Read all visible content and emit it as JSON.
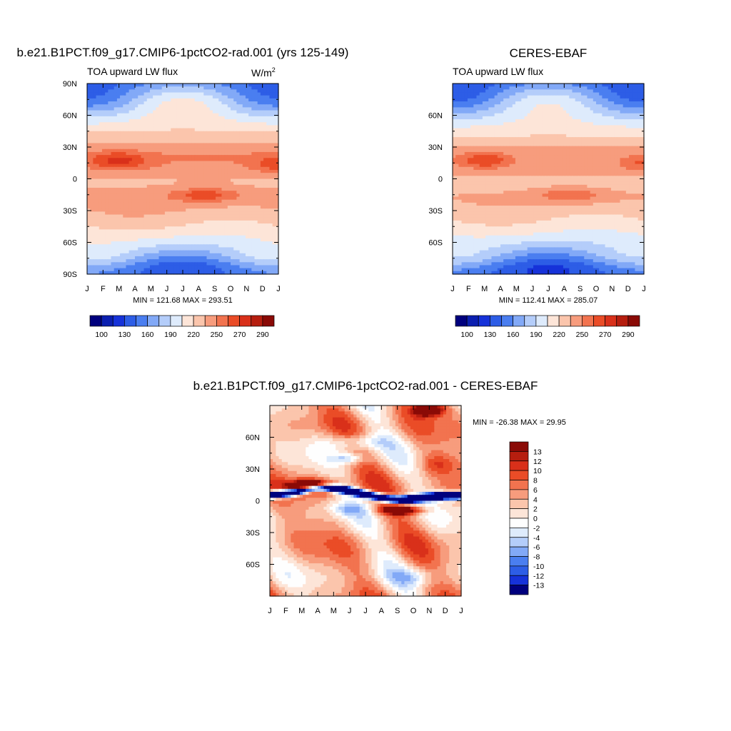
{
  "chart_data": [
    {
      "type": "heatmap",
      "title": "b.e21.B1PCT.f09_g17.CMIP6-1pctCO2-rad.001 (yrs 125-149)",
      "left_label": "TOA upward LW flux",
      "units_label": "W/m",
      "units_exponent": "2",
      "x_ticks": [
        "J",
        "F",
        "M",
        "A",
        "M",
        "J",
        "J",
        "A",
        "S",
        "O",
        "N",
        "D",
        "J"
      ],
      "y_ticks": [
        "90N",
        "60N",
        "30N",
        "0",
        "30S",
        "60S",
        "90S"
      ],
      "stats": "MIN = 121.68 MAX = 293.51",
      "min": 121.68,
      "max": 293.51,
      "colorbar_labels": [
        "100",
        "130",
        "160",
        "190",
        "220",
        "250",
        "270",
        "290"
      ],
      "colorbar_colors": [
        "#00007e",
        "#0b1fb0",
        "#1632d9",
        "#2d5de6",
        "#4a7ef0",
        "#82a9f7",
        "#b4cdfa",
        "#deebfc",
        "#fde5d8",
        "#fbc5ac",
        "#f79c7d",
        "#f2734f",
        "#ea4c27",
        "#d9301a",
        "#b61e0f",
        "#8a0a06"
      ],
      "colorbar_levels": [
        100,
        115,
        130,
        145,
        160,
        175,
        190,
        205,
        220,
        235,
        250,
        260,
        270,
        280,
        290
      ]
    },
    {
      "type": "heatmap",
      "title": "CERES-EBAF",
      "left_label": "TOA upward LW flux",
      "x_ticks": [
        "J",
        "F",
        "M",
        "A",
        "M",
        "J",
        "J",
        "A",
        "S",
        "O",
        "N",
        "D",
        "J"
      ],
      "y_ticks": [
        "60N",
        "30N",
        "0",
        "30S",
        "60S"
      ],
      "stats": "MIN = 112.41 MAX = 285.07",
      "min": 112.41,
      "max": 285.07,
      "colorbar_labels": [
        "100",
        "130",
        "160",
        "190",
        "220",
        "250",
        "270",
        "290"
      ],
      "colorbar_colors": [
        "#00007e",
        "#0b1fb0",
        "#1632d9",
        "#2d5de6",
        "#4a7ef0",
        "#82a9f7",
        "#b4cdfa",
        "#deebfc",
        "#fde5d8",
        "#fbc5ac",
        "#f79c7d",
        "#f2734f",
        "#ea4c27",
        "#d9301a",
        "#b61e0f",
        "#8a0a06"
      ],
      "colorbar_levels": [
        100,
        115,
        130,
        145,
        160,
        175,
        190,
        205,
        220,
        235,
        250,
        260,
        270,
        280,
        290
      ]
    },
    {
      "type": "heatmap",
      "title": "b.e21.B1PCT.f09_g17.CMIP6-1pctCO2-rad.001 - CERES-EBAF",
      "x_ticks": [
        "J",
        "F",
        "M",
        "A",
        "M",
        "J",
        "J",
        "A",
        "S",
        "O",
        "N",
        "D",
        "J"
      ],
      "y_ticks": [
        "60N",
        "30N",
        "0",
        "30S",
        "60S"
      ],
      "stats": "MIN = -26.38 MAX =  29.95",
      "min": -26.38,
      "max": 29.95,
      "colorbar_labels": [
        "13",
        "12",
        "10",
        "8",
        "6",
        "4",
        "2",
        "0",
        "-2",
        "-4",
        "-6",
        "-8",
        "-10",
        "-12",
        "-13"
      ],
      "colorbar_colors": [
        "#8a0a06",
        "#b61e0f",
        "#d9301a",
        "#ea4c27",
        "#f2734f",
        "#f79c7d",
        "#fbc5ac",
        "#fde5d8",
        "#fefefe",
        "#deebfc",
        "#b4cdfa",
        "#82a9f7",
        "#4a7ef0",
        "#2d5de6",
        "#1632d9",
        "#00007e"
      ],
      "colorbar_levels": [
        13,
        12,
        10,
        8,
        6,
        4,
        2,
        0,
        -2,
        -4,
        -6,
        -8,
        -10,
        -12,
        -13
      ]
    }
  ]
}
